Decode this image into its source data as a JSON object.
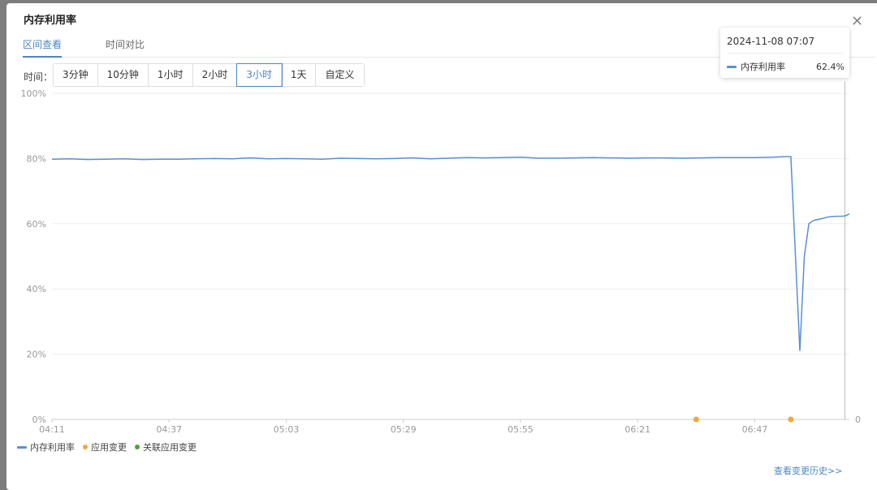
{
  "dialog": {
    "title": "内存利用率",
    "close_icon": "close-icon"
  },
  "tabs": [
    {
      "label": "区间查看",
      "active": true
    },
    {
      "label": "时间对比",
      "active": false
    }
  ],
  "time_filter": {
    "label": "时间：",
    "options": [
      "3分钟",
      "10分钟",
      "1小时",
      "2小时",
      "3小时",
      "1天",
      "自定义"
    ],
    "selected": "3小时"
  },
  "tooltip": {
    "time": "2024-11-08 07:07",
    "series": "内存利用率",
    "value": "62.4%"
  },
  "legend": [
    {
      "name": "内存利用率",
      "color": "#5b8fd4",
      "shape": "line"
    },
    {
      "name": "应用变更",
      "color": "#f0a93a",
      "shape": "dot"
    },
    {
      "name": "关联应用变更",
      "color": "#4aa336",
      "shape": "dot"
    }
  ],
  "history_link": "查看变更历史>>",
  "chart_data": {
    "type": "line",
    "x_ticks": [
      "04:11",
      "04:37",
      "05:03",
      "05:29",
      "05:55",
      "06:21",
      "06:47"
    ],
    "y_ticks": [
      "0%",
      "20%",
      "40%",
      "60%",
      "80%",
      "100%"
    ],
    "y_right_ticks": [
      "0"
    ],
    "ylim": [
      0,
      100
    ],
    "xlim": [
      "04:11",
      "07:08"
    ],
    "grid": true,
    "legend_position": "bottom-left",
    "hover_time": "07:07",
    "series": [
      {
        "name": "内存利用率",
        "color": "#5b8fd4",
        "points": [
          [
            "04:11",
            79.8
          ],
          [
            "04:15",
            79.9
          ],
          [
            "04:19",
            79.7
          ],
          [
            "04:23",
            79.8
          ],
          [
            "04:27",
            79.9
          ],
          [
            "04:31",
            79.7
          ],
          [
            "04:35",
            79.8
          ],
          [
            "04:39",
            79.8
          ],
          [
            "04:43",
            79.9
          ],
          [
            "04:47",
            80.0
          ],
          [
            "04:51",
            79.9
          ],
          [
            "04:55",
            80.2
          ],
          [
            "04:59",
            79.9
          ],
          [
            "05:03",
            80.0
          ],
          [
            "05:07",
            79.9
          ],
          [
            "05:11",
            79.8
          ],
          [
            "05:15",
            80.1
          ],
          [
            "05:19",
            80.0
          ],
          [
            "05:23",
            79.9
          ],
          [
            "05:27",
            80.0
          ],
          [
            "05:31",
            80.2
          ],
          [
            "05:35",
            79.9
          ],
          [
            "05:39",
            80.1
          ],
          [
            "05:43",
            80.3
          ],
          [
            "05:47",
            80.2
          ],
          [
            "05:51",
            80.3
          ],
          [
            "05:55",
            80.4
          ],
          [
            "05:59",
            80.1
          ],
          [
            "06:03",
            80.1
          ],
          [
            "06:07",
            80.2
          ],
          [
            "06:11",
            80.3
          ],
          [
            "06:15",
            80.2
          ],
          [
            "06:19",
            80.1
          ],
          [
            "06:23",
            80.2
          ],
          [
            "06:27",
            80.2
          ],
          [
            "06:31",
            80.1
          ],
          [
            "06:35",
            80.2
          ],
          [
            "06:39",
            80.3
          ],
          [
            "06:43",
            80.3
          ],
          [
            "06:47",
            80.3
          ],
          [
            "06:51",
            80.4
          ],
          [
            "06:54",
            80.6
          ],
          [
            "06:55",
            80.6
          ],
          [
            "06:57",
            21.0
          ],
          [
            "06:58",
            50.0
          ],
          [
            "06:59",
            60.0
          ],
          [
            "07:00",
            61.0
          ],
          [
            "07:01",
            61.3
          ],
          [
            "07:02",
            61.6
          ],
          [
            "07:03",
            62.0
          ],
          [
            "07:04",
            62.2
          ],
          [
            "07:05",
            62.3
          ],
          [
            "07:06",
            62.3
          ],
          [
            "07:07",
            62.4
          ],
          [
            "07:08",
            63.0
          ]
        ]
      }
    ],
    "change_events": [
      {
        "type": "应用变更",
        "time": "06:34",
        "color": "#f0a93a"
      },
      {
        "type": "应用变更",
        "time": "06:55",
        "color": "#f0a93a"
      }
    ]
  }
}
